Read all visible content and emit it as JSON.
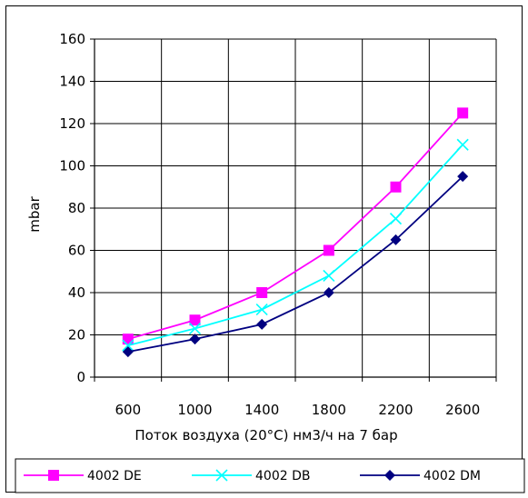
{
  "chart_data": {
    "type": "line",
    "x": [
      600,
      1000,
      1400,
      1800,
      2200,
      2600
    ],
    "xlabel": "Поток воздуха (20°C) нм3/ч на 7 бар",
    "ylabel": "mbar",
    "ylim": [
      0,
      160
    ],
    "yticks": [
      0,
      20,
      40,
      60,
      80,
      100,
      120,
      140,
      160
    ],
    "grid": true,
    "legend_position": "bottom",
    "series": [
      {
        "name": "4002 DE",
        "values": [
          18,
          27,
          40,
          60,
          90,
          125
        ],
        "color": "#ff00ff",
        "marker": "square"
      },
      {
        "name": "4002 DB",
        "values": [
          15,
          23,
          32,
          48,
          75,
          110
        ],
        "color": "#00ffff",
        "marker": "x"
      },
      {
        "name": "4002 DM",
        "values": [
          12,
          18,
          25,
          40,
          65,
          95
        ],
        "color": "#000080",
        "marker": "diamond"
      }
    ]
  }
}
